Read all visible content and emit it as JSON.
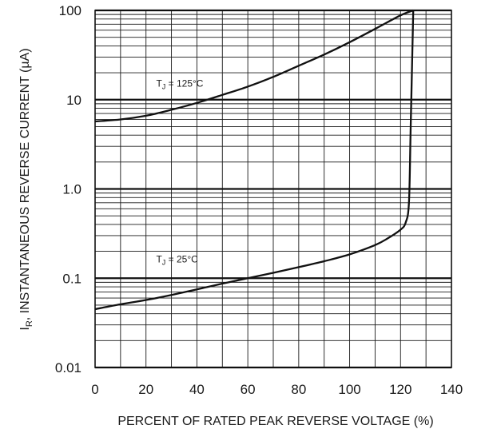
{
  "chart_data": {
    "type": "line",
    "xlabel": "PERCENT OF RATED PEAK REVERSE VOLTAGE (%)",
    "ylabel_main": "I",
    "ylabel_sub": "R",
    "ylabel_rest": ", INSTANTANEOUS REVERSE CURRENT (µA)",
    "xlim": [
      0,
      140
    ],
    "ylim": [
      0.01,
      100
    ],
    "yscale": "log",
    "grid": true,
    "x_ticks": [
      {
        "value": 0,
        "label": "0"
      },
      {
        "value": 20,
        "label": "20"
      },
      {
        "value": 40,
        "label": "40"
      },
      {
        "value": 60,
        "label": "60"
      },
      {
        "value": 80,
        "label": "80"
      },
      {
        "value": 100,
        "label": "100"
      },
      {
        "value": 120,
        "label": "120"
      },
      {
        "value": 140,
        "label": "140"
      }
    ],
    "y_ticks": [
      {
        "value": 100,
        "label": "100"
      },
      {
        "value": 10,
        "label": "10"
      },
      {
        "value": 1,
        "label": "1.0"
      },
      {
        "value": 0.1,
        "label": "0.1"
      },
      {
        "value": 0.01,
        "label": "0.01"
      }
    ],
    "series": [
      {
        "name": "TJ = 125°C",
        "label_main": "T",
        "label_sub": "J",
        "label_rest": " = 125°C",
        "label_anchor": [
          24,
          14.0
        ],
        "x": [
          0,
          10,
          20,
          30,
          40,
          50,
          60,
          70,
          80,
          90,
          100,
          110,
          120,
          125
        ],
        "y": [
          5.7,
          6.0,
          6.6,
          7.7,
          9.2,
          11.3,
          14.0,
          18.0,
          24.0,
          32.0,
          44.0,
          62.0,
          88.0,
          100
        ]
      },
      {
        "name": "TJ = 25°C",
        "label_main": "T",
        "label_sub": "J",
        "label_rest": " = 25°C",
        "label_anchor": [
          24,
          0.15
        ],
        "x": [
          0,
          10,
          20,
          30,
          40,
          50,
          60,
          70,
          80,
          90,
          100,
          110,
          115,
          120,
          122,
          123.3,
          124,
          125
        ],
        "y": [
          0.045,
          0.051,
          0.057,
          0.065,
          0.075,
          0.087,
          0.1,
          0.115,
          0.133,
          0.155,
          0.185,
          0.235,
          0.28,
          0.35,
          0.42,
          0.7,
          5,
          100
        ]
      }
    ]
  }
}
